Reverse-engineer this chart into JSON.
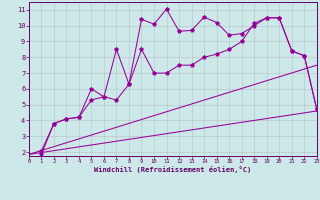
{
  "xlabel": "Windchill (Refroidissement éolien,°C)",
  "background_color": "#cce8e8",
  "line_color": "#990099",
  "tick_color": "#660066",
  "xlim": [
    0,
    23
  ],
  "ylim": [
    1.75,
    11.5
  ],
  "xticks": [
    0,
    1,
    2,
    3,
    4,
    5,
    6,
    7,
    8,
    9,
    10,
    11,
    12,
    13,
    14,
    15,
    16,
    17,
    18,
    19,
    20,
    21,
    22,
    23
  ],
  "yticks": [
    2,
    3,
    4,
    5,
    6,
    7,
    8,
    9,
    10,
    11
  ],
  "line1_x": [
    1,
    2,
    3,
    4,
    5,
    6,
    7,
    8,
    9,
    10,
    11,
    12,
    13,
    14,
    15,
    16,
    17,
    18,
    19,
    20,
    21,
    22,
    23
  ],
  "line1_y": [
    2.05,
    3.8,
    4.1,
    4.2,
    6.0,
    5.5,
    8.5,
    6.3,
    10.4,
    10.1,
    11.05,
    9.65,
    9.7,
    10.55,
    10.2,
    9.4,
    9.5,
    10.0,
    10.5,
    10.5,
    8.4,
    8.1,
    4.7
  ],
  "line2_x": [
    1,
    2,
    3,
    4,
    5,
    6,
    7,
    8,
    9,
    10,
    11,
    12,
    13,
    14,
    15,
    16,
    17,
    18,
    19,
    20,
    21,
    22,
    23
  ],
  "line2_y": [
    1.85,
    3.8,
    4.1,
    4.2,
    5.3,
    5.5,
    5.3,
    6.3,
    8.5,
    7.0,
    7.0,
    7.5,
    7.5,
    8.0,
    8.2,
    8.5,
    9.0,
    10.15,
    10.5,
    10.5,
    8.4,
    8.1,
    4.7
  ],
  "straight_upper_y0": 1.85,
  "straight_upper_y1": 7.5,
  "straight_lower_y0": 1.85,
  "straight_lower_y1": 4.6,
  "marker": "*",
  "markersize": 2.8,
  "linewidth": 0.75,
  "xtick_fontsize": 4.0,
  "ytick_fontsize": 5.0,
  "xlabel_fontsize": 5.0
}
